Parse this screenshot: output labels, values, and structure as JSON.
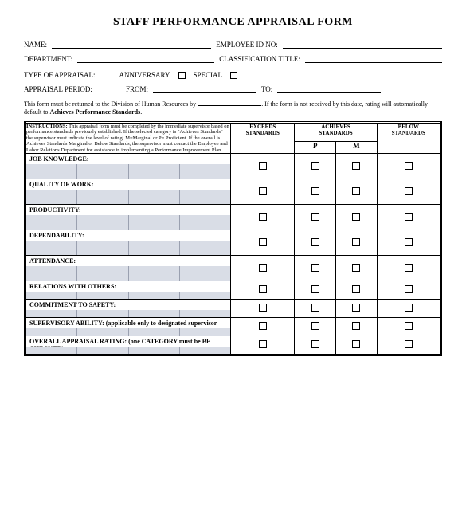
{
  "title": "STAFF PERFORMANCE APPRAISAL FORM",
  "fields": {
    "name": "NAME:",
    "empId": "EMPLOYEE ID NO:",
    "dept": "DEPARTMENT:",
    "classTitle": "CLASSIFICATION TITLE:",
    "typeLabel": "TYPE OF APPRAISAL:",
    "anniversary": "ANNIVERSARY",
    "special": "SPECIAL",
    "periodLabel": "APPRAISAL PERIOD:",
    "from": "FROM:",
    "to": "TO:"
  },
  "notice": {
    "pre": "This form must be returned to the Division of Human Resources by ",
    "post": ". If the form is not received by this date, rating will automatically default to ",
    "bold": "Achieves Performance Standards",
    "end": "."
  },
  "headers": {
    "instructions": "INSTRUCTIONS: This appraisal form must be completed by the immediate supervisor based on performance standards previously established. If the selected category is \"Achieves Standards\" the supervisor must indicate the level of rating: M=Marginal or P= Proficient. If the overall is Achieves Standards Marginal or Below Standards, the supervisor must contact the Employee and Labor Relations Department for assistance in implementing a Performance Improvement Plan.",
    "exceeds1": "EXCEEDS",
    "exceeds2": "STANDARDS",
    "achieves1": "ACHIEVES",
    "achieves2": "STANDARDS",
    "below1": "BELOW",
    "below2": "STANDARDS",
    "p": "P",
    "m": "M"
  },
  "categories": [
    {
      "label": "JOB KNOWLEDGE:",
      "tall": true
    },
    {
      "label": "QUALITY OF WORK:",
      "tall": true
    },
    {
      "label": "PRODUCTIVITY:",
      "tall": true
    },
    {
      "label": "DEPENDABILITY:",
      "tall": true
    },
    {
      "label": "ATTENDANCE:",
      "tall": true
    },
    {
      "label": "RELATIONS WITH OTHERS:",
      "tall": false
    },
    {
      "label": "COMMITMENT TO SAFETY:",
      "tall": false
    },
    {
      "label": "SUPERVISORY ABILITY: (applicable only to designated supervisor positions)",
      "tall": false
    },
    {
      "label": "OVERALL APPRAISAL RATING: (one CATEGORY must be BE CHECKED)",
      "tall": false
    }
  ],
  "colors": {
    "shadedRow": "#d9dde6"
  }
}
